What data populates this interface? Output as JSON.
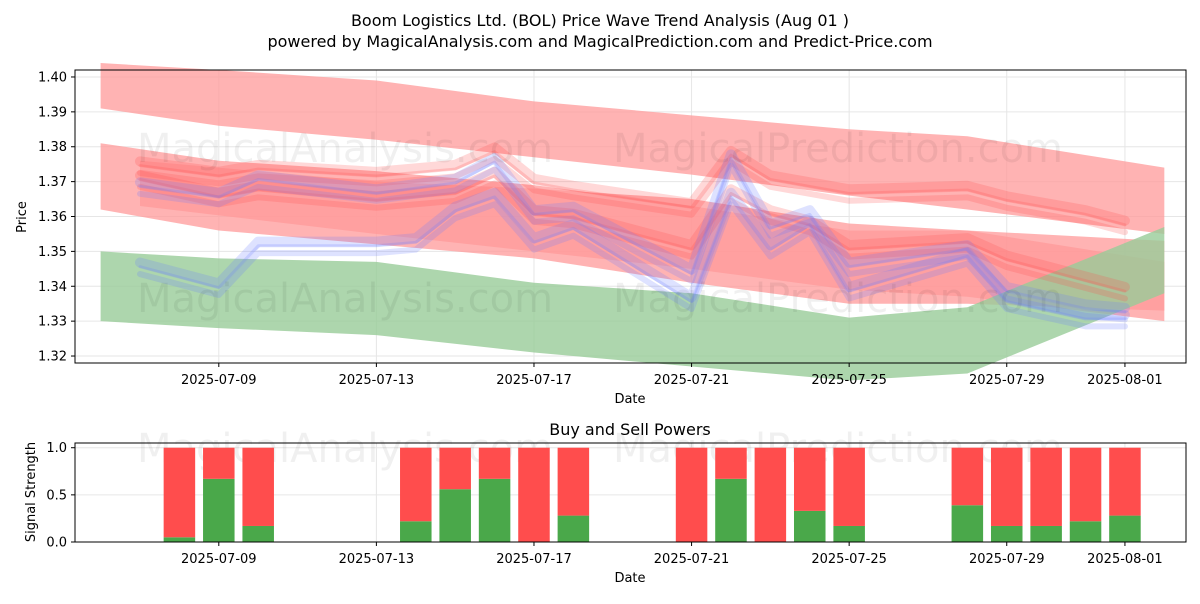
{
  "title_line1": "Boom Logistics Ltd. (BOL) Price Wave Trend Analysis (Aug 01 )",
  "title_line2": "powered by MagicalAnalysis.com and MagicalPrediction.com and Predict-Price.com",
  "watermarks": [
    "MagicalAnalysis.com",
    "MagicalPrediction.com"
  ],
  "colors": {
    "red": "#ff4d4d",
    "green": "#4aa84a",
    "blue": "#6b7bff",
    "band_red": "#ff9999",
    "band_green": "#99cc99"
  },
  "chart_data": [
    {
      "type": "area",
      "xlabel": "Date",
      "ylabel": "Price",
      "ylim": [
        1.318,
        1.402
      ],
      "xlim": [
        "2025-07-06",
        "2025-08-02"
      ],
      "yticks": [
        "1.32",
        "1.33",
        "1.34",
        "1.35",
        "1.36",
        "1.37",
        "1.38",
        "1.39",
        "1.40"
      ],
      "xticks": [
        "2025-07-09",
        "2025-07-13",
        "2025-07-17",
        "2025-07-21",
        "2025-07-25",
        "2025-07-29",
        "2025-08-01"
      ],
      "grid": true,
      "bands": [
        {
          "color": "red",
          "dates": [
            "2025-07-06",
            "2025-07-09",
            "2025-07-13",
            "2025-07-17",
            "2025-07-21",
            "2025-07-25",
            "2025-07-28",
            "2025-08-02"
          ],
          "upper": [
            1.404,
            1.402,
            1.399,
            1.393,
            1.389,
            1.385,
            1.383,
            1.374
          ],
          "lower": [
            1.391,
            1.386,
            1.382,
            1.377,
            1.372,
            1.366,
            1.362,
            1.355
          ]
        },
        {
          "color": "red",
          "dates": [
            "2025-07-06",
            "2025-07-09",
            "2025-07-13",
            "2025-07-17",
            "2025-07-21",
            "2025-07-25",
            "2025-07-28",
            "2025-08-02"
          ],
          "upper": [
            1.381,
            1.376,
            1.373,
            1.369,
            1.363,
            1.356,
            1.356,
            1.353
          ],
          "lower": [
            1.362,
            1.356,
            1.352,
            1.348,
            1.341,
            1.335,
            1.335,
            1.333
          ]
        },
        {
          "color": "red",
          "dates": [
            "2025-07-07",
            "2025-07-13",
            "2025-07-17",
            "2025-07-21",
            "2025-07-25",
            "2025-07-28",
            "2025-08-02"
          ],
          "upper": [
            1.376,
            1.37,
            1.368,
            1.365,
            1.358,
            1.356,
            1.347
          ],
          "lower": [
            1.363,
            1.355,
            1.35,
            1.345,
            1.339,
            1.337,
            1.33
          ]
        },
        {
          "color": "green",
          "dates": [
            "2025-07-06",
            "2025-07-09",
            "2025-07-13",
            "2025-07-17",
            "2025-07-21",
            "2025-07-25",
            "2025-07-28",
            "2025-08-02"
          ],
          "upper": [
            1.35,
            1.348,
            1.347,
            1.341,
            1.338,
            1.331,
            1.334,
            1.357
          ],
          "lower": [
            1.33,
            1.328,
            1.326,
            1.321,
            1.317,
            1.313,
            1.315,
            1.338
          ]
        }
      ],
      "series": [
        {
          "color": "red",
          "dates": [
            "2025-07-07",
            "2025-07-09",
            "2025-07-10",
            "2025-07-13",
            "2025-07-15",
            "2025-07-16",
            "2025-07-17",
            "2025-07-18",
            "2025-07-21",
            "2025-07-22",
            "2025-07-23",
            "2025-07-24",
            "2025-07-25",
            "2025-07-28",
            "2025-07-29",
            "2025-07-31",
            "2025-08-01"
          ],
          "values": [
            1.374,
            1.371,
            1.373,
            1.371,
            1.373,
            1.378,
            1.369,
            1.367,
            1.362,
            1.377,
            1.37,
            1.368,
            1.366,
            1.367,
            1.364,
            1.36,
            1.357
          ]
        },
        {
          "color": "red",
          "dates": [
            "2025-07-07",
            "2025-07-09",
            "2025-07-10",
            "2025-07-13",
            "2025-07-15",
            "2025-07-16",
            "2025-07-17",
            "2025-07-18",
            "2025-07-21",
            "2025-07-22",
            "2025-07-23",
            "2025-07-24",
            "2025-07-25",
            "2025-07-28",
            "2025-07-29",
            "2025-07-31",
            "2025-08-01"
          ],
          "values": [
            1.37,
            1.365,
            1.367,
            1.364,
            1.366,
            1.371,
            1.36,
            1.359,
            1.35,
            1.366,
            1.36,
            1.357,
            1.35,
            1.352,
            1.347,
            1.341,
            1.338
          ]
        },
        {
          "color": "blue",
          "dates": [
            "2025-07-07",
            "2025-07-09",
            "2025-07-10",
            "2025-07-13",
            "2025-07-14",
            "2025-07-15",
            "2025-07-16",
            "2025-07-17",
            "2025-07-18",
            "2025-07-20",
            "2025-07-21",
            "2025-07-22",
            "2025-07-23",
            "2025-07-24",
            "2025-07-25",
            "2025-07-28",
            "2025-07-29",
            "2025-07-31",
            "2025-08-01"
          ],
          "values": [
            1.345,
            1.339,
            1.351,
            1.351,
            1.352,
            1.361,
            1.365,
            1.352,
            1.356,
            1.342,
            1.335,
            1.365,
            1.35,
            1.357,
            1.338,
            1.348,
            1.335,
            1.33,
            1.33
          ]
        },
        {
          "color": "blue",
          "dates": [
            "2025-07-07",
            "2025-07-09",
            "2025-07-10",
            "2025-07-13",
            "2025-07-15",
            "2025-07-16",
            "2025-07-17",
            "2025-07-18",
            "2025-07-21",
            "2025-07-22",
            "2025-07-23",
            "2025-07-24",
            "2025-07-25",
            "2025-07-28",
            "2025-07-29",
            "2025-07-31",
            "2025-08-01"
          ],
          "values": [
            1.368,
            1.365,
            1.37,
            1.366,
            1.369,
            1.375,
            1.36,
            1.361,
            1.343,
            1.376,
            1.356,
            1.36,
            1.345,
            1.35,
            1.338,
            1.333,
            1.332
          ]
        }
      ]
    },
    {
      "type": "bar",
      "title": "Buy and Sell Powers",
      "xlabel": "Date",
      "ylabel": "Signal Strength",
      "ylim": [
        0,
        1.05
      ],
      "yticks": [
        "0.0",
        "0.5",
        "1.0"
      ],
      "xticks": [
        "2025-07-09",
        "2025-07-13",
        "2025-07-17",
        "2025-07-21",
        "2025-07-25",
        "2025-07-29",
        "2025-08-01"
      ],
      "dates": [
        "2025-07-08",
        "2025-07-09",
        "2025-07-10",
        "2025-07-14",
        "2025-07-15",
        "2025-07-16",
        "2025-07-17",
        "2025-07-18",
        "2025-07-21",
        "2025-07-22",
        "2025-07-23",
        "2025-07-24",
        "2025-07-25",
        "2025-07-28",
        "2025-07-29",
        "2025-07-30",
        "2025-07-31",
        "2025-08-01"
      ],
      "buy": [
        0.05,
        0.67,
        0.17,
        0.22,
        0.56,
        0.67,
        0.0,
        0.28,
        0.0,
        0.67,
        0.0,
        0.33,
        0.17,
        0.39,
        0.17,
        0.17,
        0.22,
        0.28
      ],
      "sell": [
        0.95,
        0.33,
        0.83,
        0.78,
        0.44,
        0.33,
        1.0,
        0.72,
        1.0,
        0.33,
        1.0,
        0.67,
        0.83,
        0.61,
        0.83,
        0.83,
        0.78,
        0.72
      ]
    }
  ]
}
